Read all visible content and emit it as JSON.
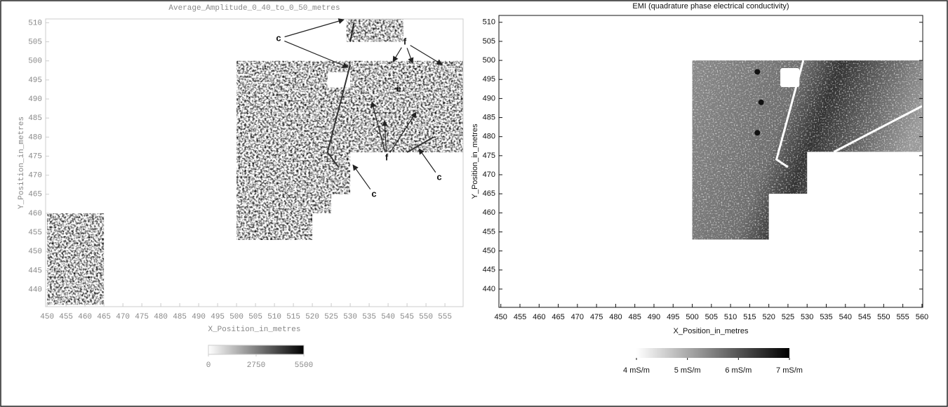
{
  "chart_data": [
    {
      "type": "heatmap",
      "title": "Average_Amplitude_0_40_to_0_50_metres",
      "xlabel": "X_Position_in_metres",
      "ylabel": "Y_Position_in_metres",
      "xlim": [
        449.6,
        559.8
      ],
      "xticks": [
        450,
        455,
        460,
        465,
        470,
        475,
        480,
        485,
        490,
        495,
        500,
        505,
        510,
        515,
        520,
        525,
        530,
        535,
        540,
        545,
        550,
        555
      ],
      "ylim": [
        435.5,
        511
      ],
      "yticks": [
        440,
        445,
        450,
        455,
        460,
        465,
        470,
        475,
        480,
        485,
        490,
        495,
        500,
        505,
        510
      ],
      "colorbar": {
        "lim": [
          0,
          5500
        ],
        "ticks": [
          0,
          2750,
          5500
        ],
        "colors": [
          "#ffffff",
          "#000000"
        ]
      },
      "annotations": [
        "c",
        "f",
        "e",
        "f",
        "c",
        "c"
      ]
    },
    {
      "type": "heatmap",
      "title": "EMI (quadrature phase electrical conductivity)",
      "xlabel": "X_Position_in_metres",
      "ylabel": "Y_Position_in_metres",
      "xlim": [
        449.5,
        560.2
      ],
      "xticks": [
        450,
        455,
        460,
        465,
        470,
        475,
        480,
        485,
        490,
        495,
        500,
        505,
        510,
        515,
        520,
        525,
        530,
        535,
        540,
        545,
        550,
        555,
        560
      ],
      "ylim": [
        435.2,
        511.8
      ],
      "yticks": [
        440,
        445,
        450,
        455,
        460,
        465,
        470,
        475,
        480,
        485,
        490,
        495,
        500,
        505,
        510
      ],
      "colorbar": {
        "lim": [
          4,
          7
        ],
        "ticks": [
          {
            "value": 4,
            "label": "4 mS/m"
          },
          {
            "value": 5,
            "label": "5 mS/m"
          },
          {
            "value": 6,
            "label": "6 mS/m"
          },
          {
            "value": 7,
            "label": "7 mS/m"
          }
        ],
        "colors": [
          "#ffffff",
          "#000000"
        ]
      }
    }
  ]
}
